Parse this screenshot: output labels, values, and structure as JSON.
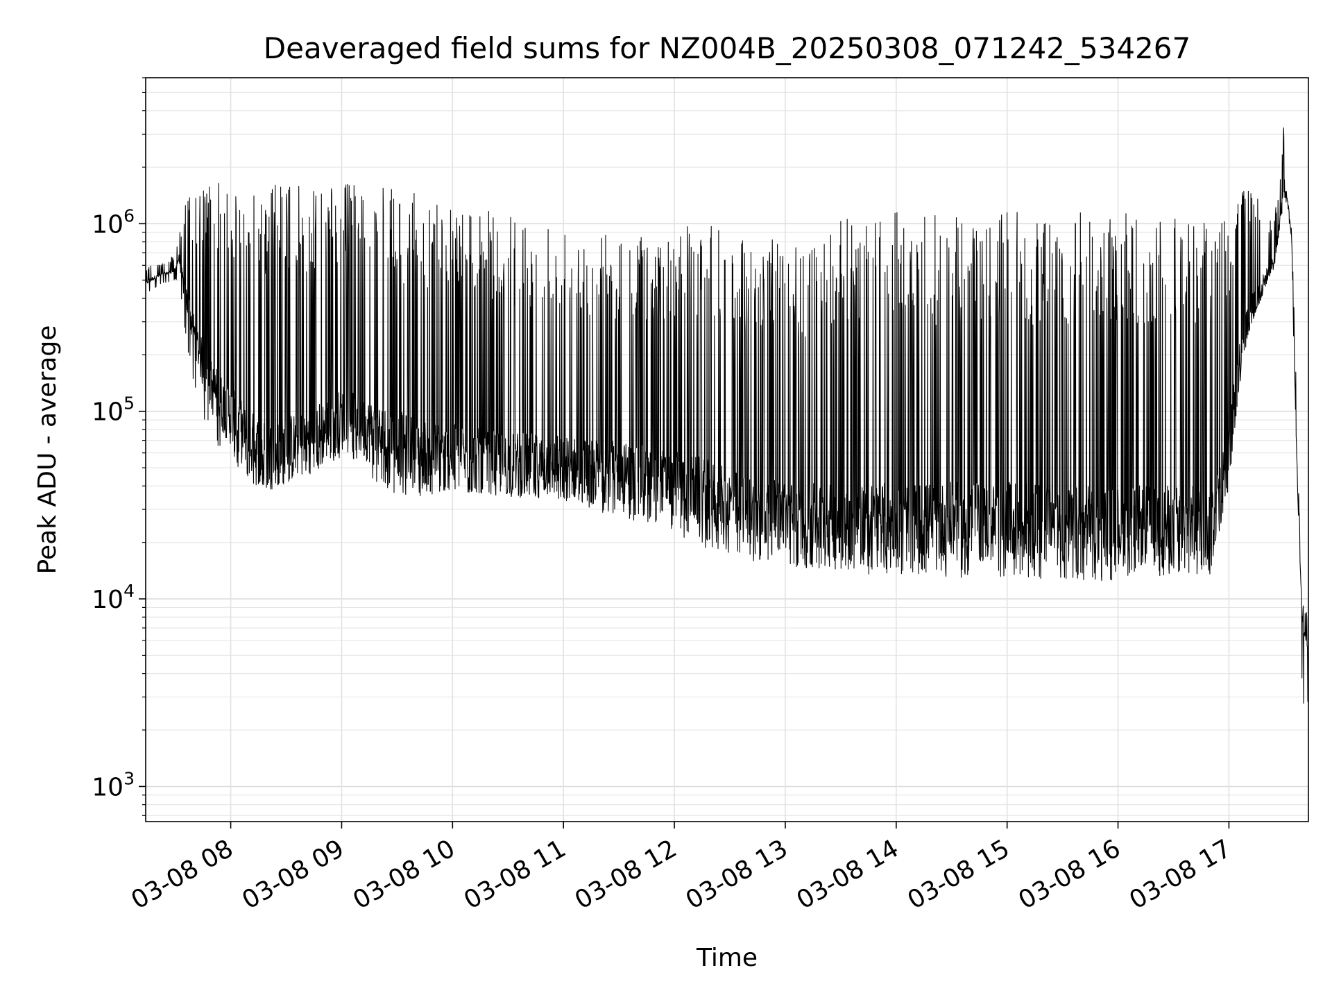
{
  "chart_data": {
    "type": "line",
    "title": "Deaveraged field sums for NZ004B_20250308_071242_534267",
    "xlabel": "Time",
    "ylabel": "Peak ADU - average",
    "yscale": "log",
    "ylim": [
      650,
      6000000
    ],
    "xlim": [
      "2025-03-08 07:14",
      "2025-03-08 17:43"
    ],
    "x_ticks": [
      {
        "value": "2025-03-08 08:00",
        "label": "03-08 08"
      },
      {
        "value": "2025-03-08 09:00",
        "label": "03-08 09"
      },
      {
        "value": "2025-03-08 10:00",
        "label": "03-08 10"
      },
      {
        "value": "2025-03-08 11:00",
        "label": "03-08 11"
      },
      {
        "value": "2025-03-08 12:00",
        "label": "03-08 12"
      },
      {
        "value": "2025-03-08 13:00",
        "label": "03-08 13"
      },
      {
        "value": "2025-03-08 14:00",
        "label": "03-08 14"
      },
      {
        "value": "2025-03-08 15:00",
        "label": "03-08 15"
      },
      {
        "value": "2025-03-08 16:00",
        "label": "03-08 16"
      },
      {
        "value": "2025-03-08 17:00",
        "label": "03-08 17"
      }
    ],
    "y_ticks": [
      {
        "value": 1000,
        "base": "10",
        "exp": "3"
      },
      {
        "value": 10000,
        "base": "10",
        "exp": "4"
      },
      {
        "value": 100000,
        "base": "10",
        "exp": "5"
      },
      {
        "value": 1000000,
        "base": "10",
        "exp": "6"
      }
    ],
    "grid": true,
    "series": [
      {
        "color": "#000000",
        "x": [
          "07:14",
          "07:20",
          "07:25",
          "07:30",
          "07:32",
          "07:35",
          "07:40",
          "07:45",
          "07:50",
          "07:55",
          "08:00",
          "08:10",
          "08:20",
          "08:30",
          "08:40",
          "08:50",
          "09:00",
          "09:10",
          "09:20",
          "09:30",
          "09:40",
          "09:50",
          "10:00",
          "10:15",
          "10:30",
          "10:45",
          "11:00",
          "11:15",
          "11:30",
          "11:45",
          "12:00",
          "12:15",
          "12:30",
          "12:45",
          "13:00",
          "13:15",
          "13:30",
          "13:45",
          "14:00",
          "14:15",
          "14:30",
          "14:45",
          "15:00",
          "15:15",
          "15:30",
          "15:45",
          "16:00",
          "16:10",
          "16:20",
          "16:30",
          "16:40",
          "16:50",
          "17:00",
          "17:05",
          "17:10",
          "17:15",
          "17:20",
          "17:25",
          "17:28",
          "17:30",
          "17:32",
          "17:34",
          "17:36",
          "17:38",
          "17:40",
          "17:42",
          "17:43"
        ],
        "y_floor": [
          480000,
          520000,
          540000,
          560000,
          650000,
          420000,
          250000,
          160000,
          120000,
          100000,
          85000,
          60000,
          50000,
          55000,
          60000,
          70000,
          80000,
          75000,
          65000,
          60000,
          55000,
          52000,
          50000,
          48000,
          47000,
          46000,
          45000,
          43000,
          42000,
          40000,
          36000,
          32000,
          28000,
          25000,
          24000,
          23000,
          22000,
          22000,
          22000,
          22000,
          22000,
          22000,
          22000,
          22000,
          21000,
          21000,
          21000,
          21000,
          21000,
          21000,
          21000,
          21000,
          50000,
          150000,
          280000,
          380000,
          500000,
          650000,
          1100000,
          1500000,
          1300000,
          800000,
          100000,
          20000,
          7000,
          6000,
          5000
        ],
        "y_peak": [
          600000,
          620000,
          620000,
          700000,
          900000,
          1300000,
          1500000,
          1600000,
          1650000,
          1650000,
          1650000,
          1650000,
          1650000,
          1650000,
          1650000,
          1650000,
          1650000,
          1650000,
          1600000,
          1500000,
          1450000,
          1400000,
          1350000,
          1200000,
          1100000,
          1050000,
          1000000,
          950000,
          900000,
          850000,
          950000,
          1100000,
          900000,
          850000,
          800000,
          850000,
          1050000,
          1100000,
          1150000,
          1150000,
          1150000,
          1150000,
          1150000,
          1150000,
          1150000,
          1150000,
          1150000,
          1150000,
          1150000,
          1150000,
          1150000,
          1150000,
          1200000,
          1600000,
          1700000,
          1500000,
          1100000,
          1200000,
          2000000,
          3800000,
          1400000,
          900000,
          200000,
          30000,
          10000,
          9000,
          5000
        ],
        "y_trough": [
          420000,
          460000,
          480000,
          500000,
          500000,
          250000,
          140000,
          90000,
          75000,
          60000,
          55000,
          42000,
          38000,
          40000,
          45000,
          50000,
          55000,
          50000,
          40000,
          36000,
          35000,
          35000,
          38000,
          36000,
          35000,
          34000,
          33000,
          30000,
          27000,
          25000,
          22000,
          19000,
          17000,
          15500,
          15000,
          14500,
          14000,
          13500,
          13500,
          13500,
          13000,
          13000,
          13000,
          13000,
          12000,
          12500,
          12500,
          13000,
          13000,
          13000,
          13500,
          13500,
          40000,
          120000,
          250000,
          350000,
          450000,
          600000,
          1000000,
          1400000,
          1200000,
          700000,
          80000,
          9000,
          2200,
          2500,
          2700
        ]
      }
    ]
  }
}
